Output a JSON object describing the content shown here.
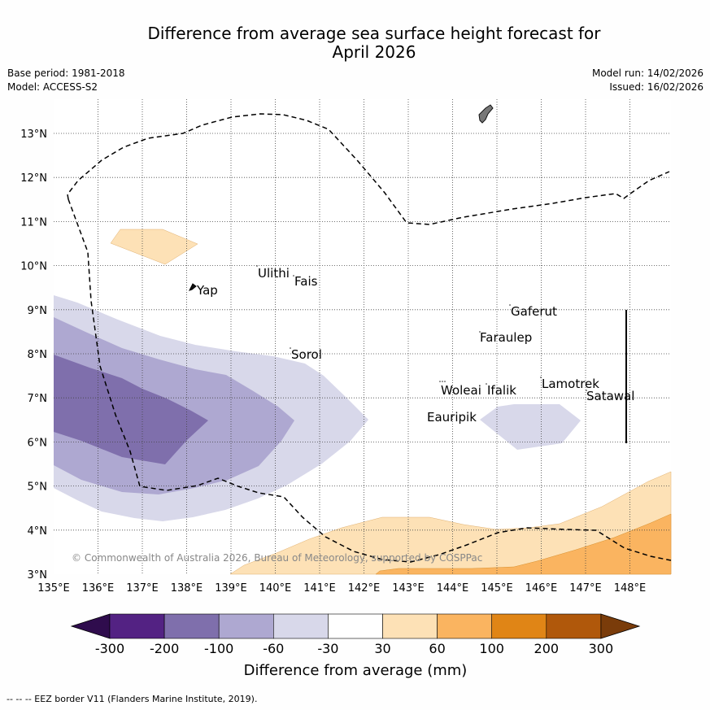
{
  "title": {
    "line1": "Difference from average sea surface height forecast for",
    "line2": "April 2026"
  },
  "meta": {
    "base_period": "Base period: 1981-2018",
    "model": "Model: ACCESS-S2",
    "model_run": "Model run: 14/02/2026",
    "issued": "Issued: 16/02/2026"
  },
  "map": {
    "lon_ticks": [
      "135°E",
      "136°E",
      "137°E",
      "138°E",
      "139°E",
      "140°E",
      "141°E",
      "142°E",
      "143°E",
      "144°E",
      "145°E",
      "146°E",
      "147°E",
      "148°E"
    ],
    "lat_ticks": [
      "3°N",
      "4°N",
      "5°N",
      "6°N",
      "7°N",
      "8°N",
      "9°N",
      "10°N",
      "11°N",
      "12°N",
      "13°N"
    ],
    "places": [
      "Yap",
      "Ulithi",
      "Fais",
      "Sorol",
      "Gaferut",
      "Faraulep",
      "Woleai",
      "Ifalik",
      "Lamotrek",
      "Satawal",
      "Eauripik"
    ],
    "copyright": "© Commonwealth of Australia 2026, Bureau of Meteorology, supported by COSPPac"
  },
  "colorbar": {
    "labels": [
      "-300",
      "-200",
      "-100",
      "-60",
      "-30",
      "30",
      "60",
      "100",
      "200",
      "300"
    ],
    "colors": [
      "#2f0c4d",
      "#532283",
      "#7f6fac",
      "#aea8d1",
      "#d8d8ea",
      "#ffffff",
      "#fde1b6",
      "#fab460",
      "#e08516",
      "#b0580b",
      "#7a3c0a"
    ],
    "title": "Difference from average (mm)"
  },
  "footer": "--  --  -- EEZ border V11 (Flanders Marine Institute, 2019)."
}
